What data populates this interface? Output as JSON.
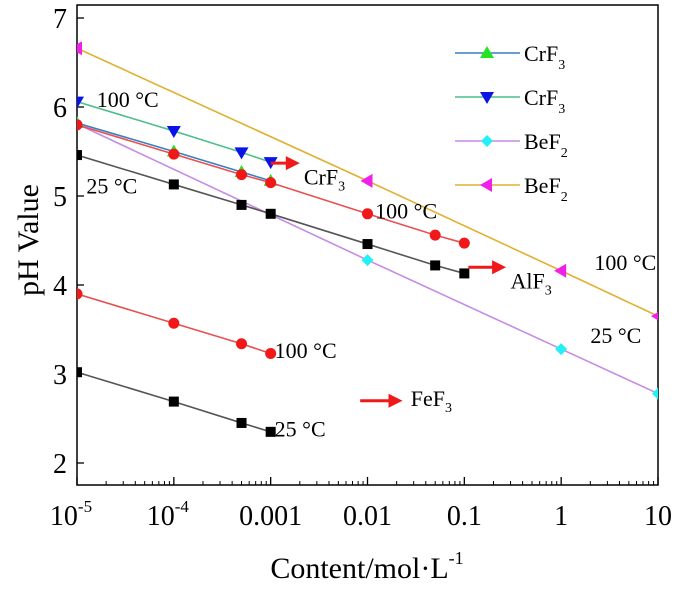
{
  "chart_data": {
    "type": "line",
    "xlabel": "Content/mol·L",
    "xlabel_sup": "-1",
    "ylabel": "pH Value",
    "xscale": "log",
    "xlim": [
      1e-05,
      10
    ],
    "ylim": [
      1.74,
      7
    ],
    "xticks": [
      {
        "base": "10",
        "sup": "-5",
        "v": 1e-05
      },
      {
        "base": "10",
        "sup": "-4",
        "v": 0.0001
      },
      {
        "base": "0.001",
        "sup": "",
        "v": 0.001
      },
      {
        "base": "0.01",
        "sup": "",
        "v": 0.01
      },
      {
        "base": "0.1",
        "sup": "",
        "v": 0.1
      },
      {
        "base": "1",
        "sup": "",
        "v": 1
      },
      {
        "base": "10",
        "sup": "",
        "v": 10
      }
    ],
    "yticks": [
      2,
      3,
      4,
      5,
      6,
      7
    ],
    "legend_position": "top-right",
    "legend": [
      {
        "base": "CrF",
        "sub": "3",
        "series": 0
      },
      {
        "base": "CrF",
        "sub": "3",
        "series": 1
      },
      {
        "base": "BeF",
        "sub": "2",
        "series": 2
      },
      {
        "base": "BeF",
        "sub": "2",
        "series": 3
      }
    ],
    "series": [
      {
        "line": "#3a7fc1",
        "marker": "triangle-up",
        "fill": "#22e622",
        "x": [
          1e-05,
          0.0001,
          0.0005,
          0.001
        ],
        "y": [
          5.82,
          5.5,
          5.27,
          5.17
        ]
      },
      {
        "line": "#4cbf8a",
        "marker": "triangle-down",
        "fill": "#0a14e6",
        "x": [
          1e-05,
          0.0001,
          0.0005,
          0.001
        ],
        "y": [
          6.06,
          5.73,
          5.49,
          5.38
        ]
      },
      {
        "line": "#c58be6",
        "marker": "diamond",
        "fill": "#22f0f5",
        "x": [
          1e-05,
          0.01,
          1,
          10
        ],
        "y": [
          5.81,
          4.28,
          3.28,
          2.78
        ]
      },
      {
        "line": "#e0b030",
        "marker": "triangle-left",
        "fill": "#f020e8",
        "x": [
          1e-05,
          0.01,
          1,
          10
        ],
        "y": [
          6.66,
          5.17,
          4.16,
          3.65
        ]
      },
      {
        "line": "#e85050",
        "marker": "circle",
        "fill": "#f01818",
        "x": [
          1e-05,
          0.0001,
          0.0005,
          0.001,
          0.01,
          0.05,
          0.1
        ],
        "y": [
          5.8,
          5.47,
          5.24,
          5.15,
          4.8,
          4.56,
          4.47
        ]
      },
      {
        "line": "#555555",
        "marker": "square",
        "fill": "#000000",
        "x": [
          1e-05,
          0.0001,
          0.0005,
          0.001,
          0.01,
          0.05,
          0.1
        ],
        "y": [
          5.46,
          5.13,
          4.9,
          4.8,
          4.46,
          4.22,
          4.13
        ]
      },
      {
        "line": "#e85050",
        "marker": "circle",
        "fill": "#f01818",
        "x": [
          1e-05,
          0.0001,
          0.0005,
          0.001
        ],
        "y": [
          3.9,
          3.57,
          3.34,
          3.23
        ]
      },
      {
        "line": "#555555",
        "marker": "square",
        "fill": "#000000",
        "x": [
          1e-05,
          0.0001,
          0.0005,
          0.001
        ],
        "y": [
          3.02,
          2.69,
          2.45,
          2.35
        ]
      }
    ],
    "annotations": [
      {
        "text": "100 °C",
        "x": 1.6e-05,
        "y": 6.0
      },
      {
        "text": "25 °C",
        "x": 1.25e-05,
        "y": 5.03
      },
      {
        "text": "100 °C",
        "x": 0.012,
        "y": 4.75
      },
      {
        "text": "100 °C",
        "x": 2.2,
        "y": 4.17
      },
      {
        "text": "25 °C",
        "x": 2.0,
        "y": 3.35
      },
      {
        "text": "100 °C",
        "x": 0.0011,
        "y": 3.18
      },
      {
        "text": "25 °C",
        "x": 0.0011,
        "y": 2.3
      }
    ],
    "arrows": [
      {
        "base": "CrF",
        "sub": "3",
        "x1": 0.001,
        "x2": 0.002,
        "y": 5.37,
        "tx": 0.0022,
        "ty": 5.13
      },
      {
        "base": "AlF",
        "sub": "3",
        "x1": 0.11,
        "x2": 0.27,
        "y": 4.2,
        "tx": 0.3,
        "ty": 3.96
      },
      {
        "base": "FeF",
        "sub": "3",
        "x1": 0.0084,
        "x2": 0.023,
        "y": 2.7,
        "tx": 0.028,
        "ty": 2.64
      }
    ]
  }
}
